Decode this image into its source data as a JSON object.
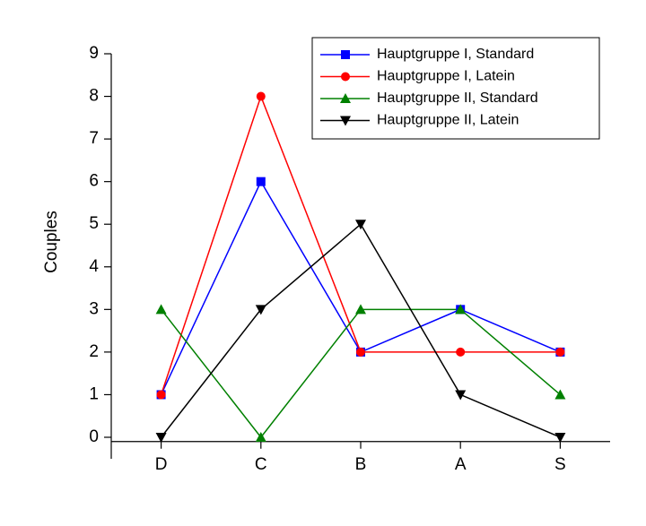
{
  "chart_data": {
    "type": "line",
    "y_label": "Couples",
    "categories": [
      "D",
      "C",
      "B",
      "A",
      "S"
    ],
    "series": [
      {
        "name": "Hauptgruppe I, Standard",
        "color": "#0000ff",
        "marker": "square",
        "values": [
          1,
          6,
          2,
          3,
          2
        ]
      },
      {
        "name": "Hauptgruppe I, Latein",
        "color": "#ff0000",
        "marker": "circle",
        "values": [
          1,
          8,
          2,
          2,
          2
        ]
      },
      {
        "name": "Hauptgruppe II, Standard",
        "color": "#008000",
        "marker": "triangle-up",
        "values": [
          3,
          0,
          3,
          3,
          1
        ]
      },
      {
        "name": "Hauptgruppe II, Latein",
        "color": "#000000",
        "marker": "triangle-down",
        "values": [
          0,
          3,
          5,
          1,
          0
        ]
      }
    ],
    "ylim": [
      -0.1,
      9
    ],
    "yticks": [
      0,
      1,
      2,
      3,
      4,
      5,
      6,
      7,
      8,
      9
    ],
    "grid": false,
    "legend": "upper-right"
  }
}
